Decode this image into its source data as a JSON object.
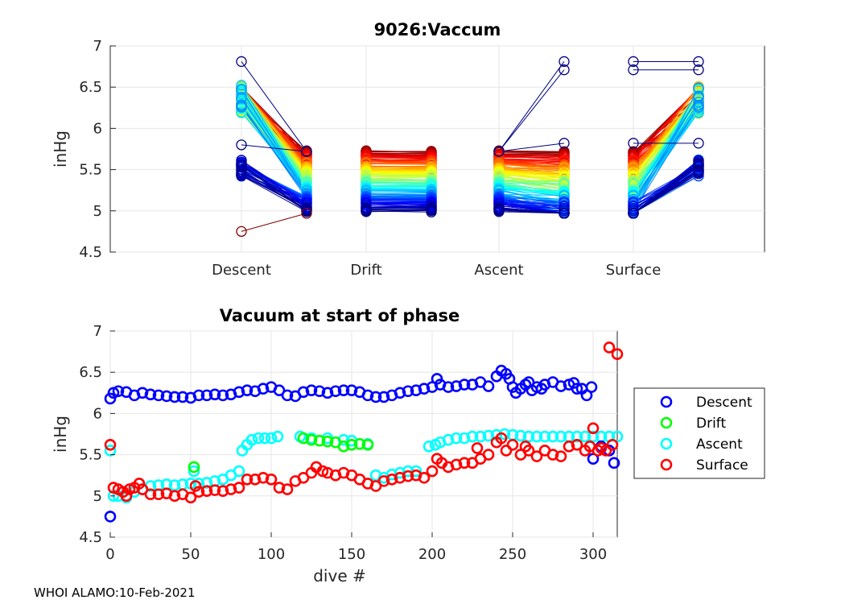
{
  "footer": "WHOI ALAMO:10-Feb-2021",
  "chart_data": [
    {
      "type": "line",
      "title": "9026:Vaccum",
      "ylabel": "inHg",
      "xlabel": "",
      "ylim": [
        4.5,
        7
      ],
      "yticks": [
        "4.5",
        "5",
        "5.5",
        "6",
        "6.5",
        "7"
      ],
      "categories": [
        "Descent",
        "Drift",
        "Ascent",
        "Surface"
      ],
      "grid": true,
      "colormap": "jet",
      "series_note": "one line per dive; each dive connects start and end of each phase",
      "phases": [
        {
          "name": "Descent",
          "start_range": [
            4.75,
            6.8
          ],
          "end_range": [
            4.97,
            5.75
          ]
        },
        {
          "name": "Drift",
          "start_range": [
            4.97,
            5.75
          ],
          "end_range": [
            4.97,
            5.75
          ]
        },
        {
          "name": "Ascent",
          "start_range": [
            4.97,
            5.75
          ],
          "end_range": [
            4.97,
            6.8
          ]
        },
        {
          "name": "Surface",
          "start_range": [
            4.97,
            6.8
          ],
          "end_range": [
            5.42,
            6.8
          ]
        }
      ]
    },
    {
      "type": "scatter",
      "title": "Vacuum at start of phase",
      "xlabel": "dive #",
      "ylabel": "inHg",
      "xlim": [
        0,
        315
      ],
      "ylim": [
        4.5,
        7
      ],
      "xticks": [
        "0",
        "50",
        "100",
        "150",
        "200",
        "250",
        "300"
      ],
      "yticks": [
        "4.5",
        "5",
        "5.5",
        "6",
        "6.5",
        "7"
      ],
      "grid": true,
      "legend": {
        "placement": "outside-right",
        "entries": [
          {
            "label": "Descent",
            "color": "#0000ff"
          },
          {
            "label": "Drift",
            "color": "#00ff00"
          },
          {
            "label": "Ascent",
            "color": "#00ffff"
          },
          {
            "label": "Surface",
            "color": "#ff0000"
          }
        ]
      },
      "series": [
        {
          "name": "Descent",
          "color": "#0000ff",
          "points": [
            [
              0,
              4.75
            ],
            [
              0,
              6.18
            ],
            [
              2,
              6.25
            ],
            [
              5,
              6.27
            ],
            [
              10,
              6.26
            ],
            [
              15,
              6.22
            ],
            [
              20,
              6.25
            ],
            [
              25,
              6.23
            ],
            [
              30,
              6.22
            ],
            [
              35,
              6.21
            ],
            [
              40,
              6.2
            ],
            [
              45,
              6.2
            ],
            [
              50,
              6.19
            ],
            [
              55,
              6.22
            ],
            [
              60,
              6.22
            ],
            [
              65,
              6.23
            ],
            [
              70,
              6.22
            ],
            [
              75,
              6.23
            ],
            [
              80,
              6.26
            ],
            [
              85,
              6.28
            ],
            [
              90,
              6.27
            ],
            [
              95,
              6.3
            ],
            [
              100,
              6.32
            ],
            [
              105,
              6.28
            ],
            [
              110,
              6.22
            ],
            [
              115,
              6.21
            ],
            [
              120,
              6.26
            ],
            [
              125,
              6.28
            ],
            [
              130,
              6.27
            ],
            [
              135,
              6.25
            ],
            [
              140,
              6.27
            ],
            [
              145,
              6.28
            ],
            [
              150,
              6.28
            ],
            [
              155,
              6.26
            ],
            [
              160,
              6.22
            ],
            [
              165,
              6.2
            ],
            [
              170,
              6.2
            ],
            [
              175,
              6.22
            ],
            [
              180,
              6.25
            ],
            [
              185,
              6.27
            ],
            [
              190,
              6.28
            ],
            [
              195,
              6.3
            ],
            [
              200,
              6.32
            ],
            [
              203,
              6.42
            ],
            [
              205,
              6.35
            ],
            [
              210,
              6.32
            ],
            [
              215,
              6.33
            ],
            [
              220,
              6.35
            ],
            [
              225,
              6.35
            ],
            [
              230,
              6.38
            ],
            [
              235,
              6.33
            ],
            [
              240,
              6.45
            ],
            [
              243,
              6.52
            ],
            [
              246,
              6.48
            ],
            [
              248,
              6.42
            ],
            [
              250,
              6.32
            ],
            [
              252,
              6.25
            ],
            [
              255,
              6.3
            ],
            [
              258,
              6.35
            ],
            [
              260,
              6.38
            ],
            [
              262,
              6.28
            ],
            [
              265,
              6.32
            ],
            [
              268,
              6.3
            ],
            [
              270,
              6.35
            ],
            [
              275,
              6.38
            ],
            [
              280,
              6.33
            ],
            [
              285,
              6.35
            ],
            [
              288,
              6.37
            ],
            [
              290,
              6.3
            ],
            [
              293,
              6.3
            ],
            [
              296,
              6.22
            ],
            [
              299,
              6.32
            ],
            [
              300,
              5.45
            ],
            [
              305,
              5.6
            ],
            [
              310,
              5.55
            ],
            [
              313,
              5.4
            ]
          ]
        },
        {
          "name": "Drift",
          "color": "#00ff00",
          "points": [
            [
              52,
              5.35
            ],
            [
              120,
              5.7
            ],
            [
              125,
              5.68
            ],
            [
              130,
              5.67
            ],
            [
              135,
              5.66
            ],
            [
              140,
              5.65
            ],
            [
              145,
              5.6
            ],
            [
              150,
              5.62
            ],
            [
              155,
              5.63
            ],
            [
              160,
              5.62
            ]
          ]
        },
        {
          "name": "Ascent",
          "color": "#00ffff",
          "points": [
            [
              0,
              5.55
            ],
            [
              2,
              5.0
            ],
            [
              5,
              5.0
            ],
            [
              10,
              4.98
            ],
            [
              15,
              5.05
            ],
            [
              20,
              5.08
            ],
            [
              25,
              5.12
            ],
            [
              30,
              5.13
            ],
            [
              35,
              5.14
            ],
            [
              40,
              5.13
            ],
            [
              45,
              5.14
            ],
            [
              50,
              5.15
            ],
            [
              52,
              5.3
            ],
            [
              55,
              5.15
            ],
            [
              60,
              5.16
            ],
            [
              65,
              5.18
            ],
            [
              70,
              5.2
            ],
            [
              75,
              5.25
            ],
            [
              80,
              5.3
            ],
            [
              82,
              5.55
            ],
            [
              85,
              5.62
            ],
            [
              88,
              5.68
            ],
            [
              92,
              5.7
            ],
            [
              96,
              5.7
            ],
            [
              100,
              5.7
            ],
            [
              104,
              5.72
            ],
            [
              118,
              5.72
            ],
            [
              125,
              5.7
            ],
            [
              135,
              5.7
            ],
            [
              145,
              5.68
            ],
            [
              150,
              5.67
            ],
            [
              160,
              5.63
            ],
            [
              165,
              5.25
            ],
            [
              170,
              5.22
            ],
            [
              175,
              5.26
            ],
            [
              180,
              5.28
            ],
            [
              185,
              5.3
            ],
            [
              190,
              5.3
            ],
            [
              198,
              5.6
            ],
            [
              202,
              5.62
            ],
            [
              205,
              5.65
            ],
            [
              210,
              5.68
            ],
            [
              215,
              5.7
            ],
            [
              220,
              5.7
            ],
            [
              225,
              5.72
            ],
            [
              230,
              5.72
            ],
            [
              235,
              5.73
            ],
            [
              240,
              5.74
            ],
            [
              245,
              5.75
            ],
            [
              250,
              5.74
            ],
            [
              255,
              5.73
            ],
            [
              260,
              5.72
            ],
            [
              265,
              5.72
            ],
            [
              270,
              5.72
            ],
            [
              275,
              5.72
            ],
            [
              280,
              5.72
            ],
            [
              285,
              5.72
            ],
            [
              290,
              5.72
            ],
            [
              295,
              5.72
            ],
            [
              300,
              5.72
            ],
            [
              305,
              5.72
            ],
            [
              310,
              5.72
            ],
            [
              315,
              5.72
            ]
          ]
        },
        {
          "name": "Surface",
          "color": "#ff0000",
          "points": [
            [
              0,
              5.62
            ],
            [
              2,
              5.1
            ],
            [
              5,
              5.08
            ],
            [
              8,
              5.05
            ],
            [
              10,
              5.0
            ],
            [
              12,
              5.08
            ],
            [
              15,
              5.1
            ],
            [
              18,
              5.15
            ],
            [
              20,
              5.08
            ],
            [
              25,
              5.02
            ],
            [
              30,
              5.02
            ],
            [
              35,
              5.03
            ],
            [
              40,
              5.0
            ],
            [
              45,
              5.02
            ],
            [
              50,
              4.98
            ],
            [
              53,
              5.12
            ],
            [
              55,
              5.05
            ],
            [
              60,
              5.06
            ],
            [
              65,
              5.07
            ],
            [
              70,
              5.06
            ],
            [
              75,
              5.08
            ],
            [
              80,
              5.1
            ],
            [
              85,
              5.2
            ],
            [
              90,
              5.2
            ],
            [
              95,
              5.22
            ],
            [
              100,
              5.2
            ],
            [
              105,
              5.1
            ],
            [
              110,
              5.08
            ],
            [
              115,
              5.18
            ],
            [
              120,
              5.22
            ],
            [
              125,
              5.28
            ],
            [
              128,
              5.35
            ],
            [
              132,
              5.3
            ],
            [
              135,
              5.28
            ],
            [
              140,
              5.25
            ],
            [
              145,
              5.28
            ],
            [
              150,
              5.25
            ],
            [
              155,
              5.2
            ],
            [
              160,
              5.15
            ],
            [
              165,
              5.12
            ],
            [
              170,
              5.18
            ],
            [
              175,
              5.2
            ],
            [
              180,
              5.22
            ],
            [
              185,
              5.24
            ],
            [
              190,
              5.25
            ],
            [
              195,
              5.22
            ],
            [
              200,
              5.3
            ],
            [
              203,
              5.45
            ],
            [
              206,
              5.4
            ],
            [
              210,
              5.35
            ],
            [
              215,
              5.38
            ],
            [
              220,
              5.4
            ],
            [
              225,
              5.4
            ],
            [
              228,
              5.58
            ],
            [
              230,
              5.45
            ],
            [
              235,
              5.5
            ],
            [
              240,
              5.65
            ],
            [
              243,
              5.7
            ],
            [
              246,
              5.55
            ],
            [
              250,
              5.62
            ],
            [
              255,
              5.5
            ],
            [
              258,
              5.6
            ],
            [
              260,
              5.55
            ],
            [
              265,
              5.48
            ],
            [
              270,
              5.55
            ],
            [
              275,
              5.5
            ],
            [
              280,
              5.48
            ],
            [
              285,
              5.6
            ],
            [
              290,
              5.62
            ],
            [
              295,
              5.55
            ],
            [
              298,
              5.6
            ],
            [
              300,
              5.82
            ],
            [
              303,
              5.55
            ],
            [
              305,
              5.58
            ],
            [
              308,
              5.55
            ],
            [
              310,
              6.8
            ],
            [
              312,
              5.62
            ],
            [
              315,
              6.72
            ]
          ]
        }
      ]
    }
  ]
}
